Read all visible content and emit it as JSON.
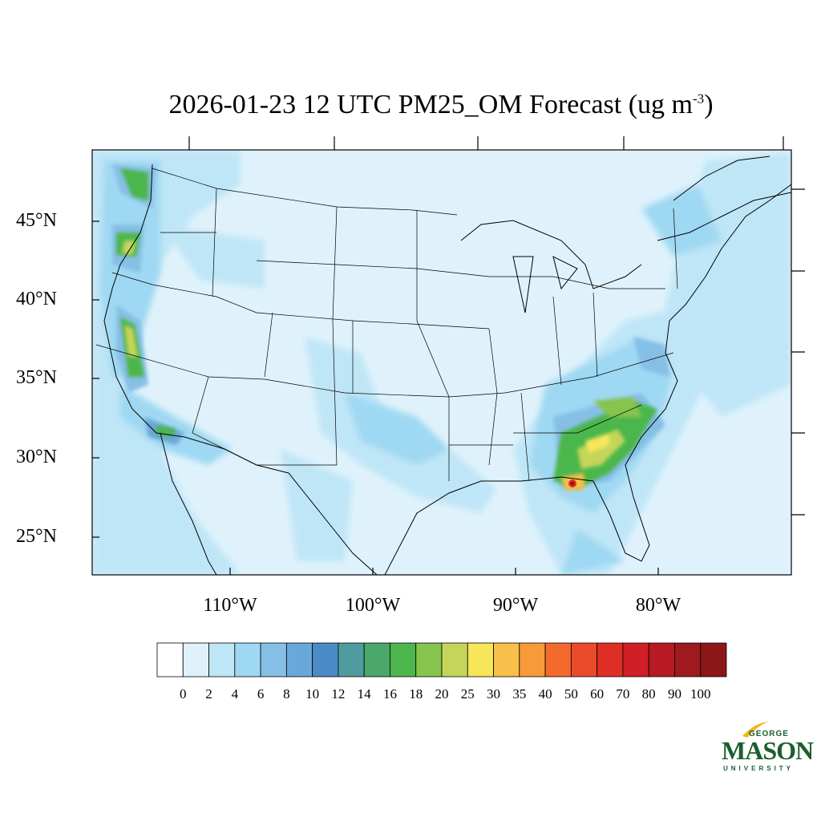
{
  "title": {
    "text": "2026-01-23 12 UTC PM25_OM Forecast (ug m",
    "superscript": "-3",
    "closing": ")"
  },
  "map": {
    "lat_labels": [
      "45°N",
      "40°N",
      "35°N",
      "30°N",
      "25°N"
    ],
    "lon_labels": [
      "110°W",
      "100°W",
      "90°W",
      "80°W"
    ],
    "background_color": "#dff2fb",
    "hotspot": {
      "region": "Florida panhandle",
      "max_category": "100"
    }
  },
  "colorbar": {
    "labels": [
      "0",
      "2",
      "4",
      "6",
      "8",
      "10",
      "12",
      "14",
      "16",
      "18",
      "20",
      "25",
      "30",
      "35",
      "40",
      "50",
      "60",
      "70",
      "80",
      "90",
      "100"
    ],
    "colors": [
      "#ffffff",
      "#dff2fb",
      "#bfe6f7",
      "#9fd8f2",
      "#86bfe6",
      "#6aa8d9",
      "#4a8bc8",
      "#4f9b9d",
      "#4aa86b",
      "#4cb64c",
      "#86c44e",
      "#c4d55a",
      "#f7e65a",
      "#f8bf4a",
      "#f79a3a",
      "#f26b2d",
      "#ea4b2b",
      "#de2f26",
      "#d01f26",
      "#b71a22",
      "#9e1a1e",
      "#8c1618"
    ]
  },
  "logo": {
    "top": "GEORGE",
    "main": "MASON",
    "bottom": "UNIVERSITY",
    "color": "#1a5f2f",
    "accent": "#f0b323"
  }
}
